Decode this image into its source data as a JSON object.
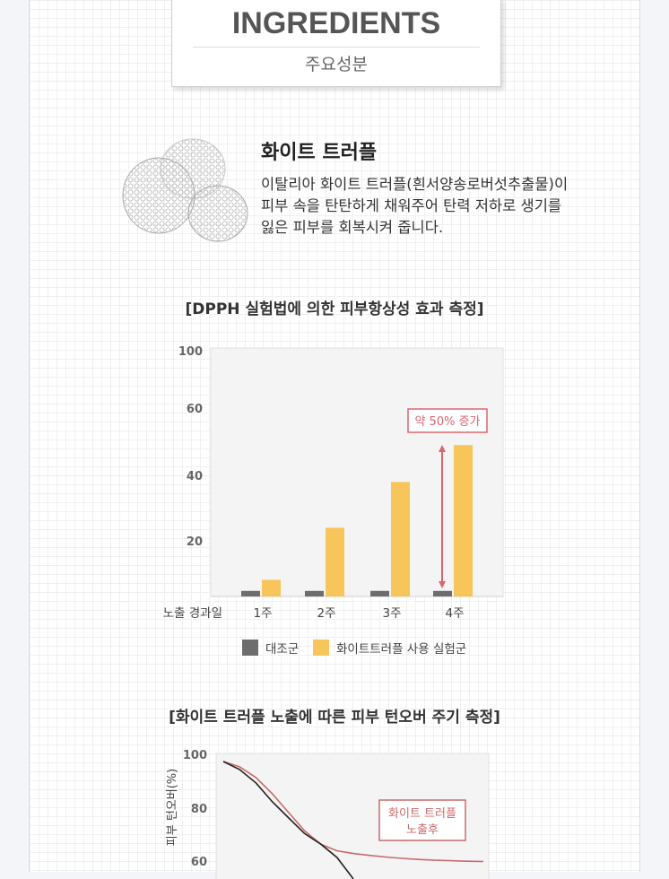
{
  "header": {
    "title_en": "INGREDIENTS",
    "title_ko": "주요성분"
  },
  "ingredient": {
    "name": "화이트 트러플",
    "description_lines": [
      "이탈리아 화이트 트러플(흰서양송로버섯추출물)이",
      "피부 속을 탄탄하게 채워주어 탄력 저하로 생기를",
      "잃은 피부를 회복시켜 줍니다."
    ]
  },
  "chart_data": [
    {
      "type": "bar",
      "title": "[DPPH 실험법에 의한 피부항상성 효과 측정]",
      "x_axis_label": "노출 경과일",
      "categories": [
        "1주",
        "2주",
        "3주",
        "4주"
      ],
      "y_ticks": [
        "100",
        "60",
        "40",
        "20"
      ],
      "series": [
        {
          "name": "대조군",
          "color": "#6d6d6d",
          "values": [
            2,
            2,
            2,
            2
          ]
        },
        {
          "name": "화이트트러플 사용 실험군",
          "color": "#f7c55a",
          "values": [
            6,
            24,
            38,
            49
          ]
        }
      ],
      "annotation": {
        "text": "약 50% 증가",
        "color": "#d9666f"
      },
      "grid": false,
      "legend_position": "bottom"
    },
    {
      "type": "line",
      "title": "[화이트 트러플 노출에 따른 피부 턴오버 주기 측정]",
      "ylabel": "피부 턴오버(%)",
      "y_ticks": [
        "100",
        "80",
        "60"
      ],
      "ylim": [
        50,
        100
      ],
      "x": [
        0,
        1,
        2,
        3,
        4,
        5,
        6,
        7,
        8,
        9,
        10,
        11,
        12,
        13,
        14,
        15,
        16
      ],
      "series": [
        {
          "name": "화이트 트러플 노출후",
          "color": "#c96a6a",
          "values": [
            99,
            97,
            93,
            87,
            80,
            73,
            68,
            65.5,
            64.5,
            63.8,
            63.2,
            62.7,
            62.3,
            62,
            61.8,
            61.6,
            61.5
          ]
        },
        {
          "color": "#222222",
          "values": [
            99,
            96,
            91,
            84,
            78,
            72,
            68,
            63,
            55,
            null,
            null,
            null,
            null,
            null,
            null,
            null,
            null
          ]
        }
      ],
      "annotation": {
        "text_lines": [
          "화이트 트러플",
          "노출후"
        ],
        "color": "#c96a6a"
      }
    }
  ]
}
